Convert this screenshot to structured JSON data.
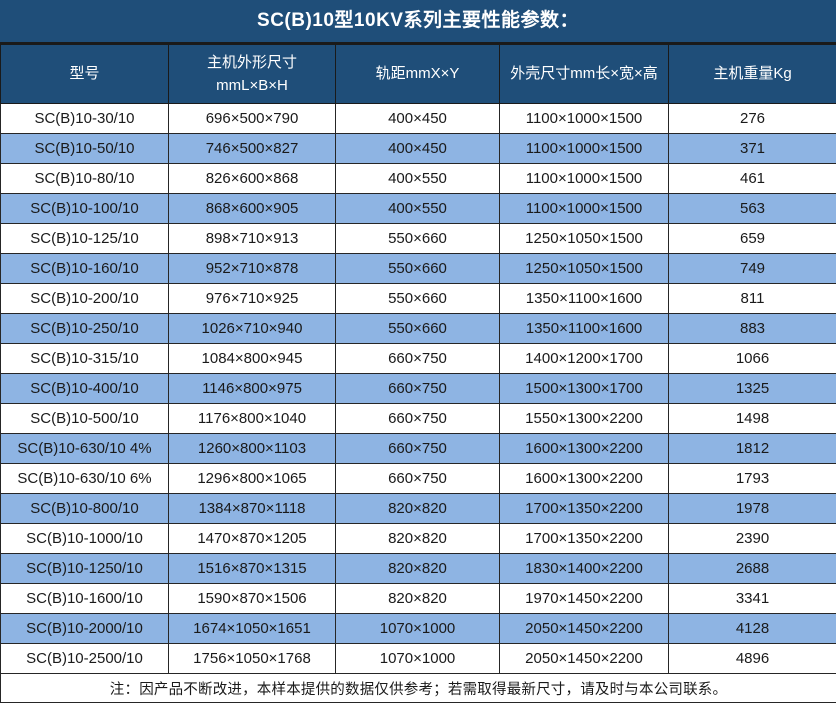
{
  "title": "SC(B)10型10KV系列主要性能参数：",
  "colors": {
    "header_dark_blue": "#1f4e79",
    "row_alt_light_blue": "#8eb4e3",
    "grid_border": "#262626",
    "header_text": "#ffffff",
    "body_text": "#1a1a1a"
  },
  "table": {
    "header": {
      "model": "型号",
      "host_dims_line1": "主机外形尺寸",
      "host_dims_line2": "mmL×B×H",
      "rail_gauge": "轨距mmX×Y",
      "shell_dims": "外壳尺寸mm长×宽×高",
      "weight": "主机重量Kg"
    },
    "rows": [
      [
        "SC(B)10-30/10",
        "696×500×790",
        "400×450",
        "1100×1000×1500",
        "276"
      ],
      [
        "SC(B)10-50/10",
        "746×500×827",
        "400×450",
        "1100×1000×1500",
        "371"
      ],
      [
        "SC(B)10-80/10",
        "826×600×868",
        "400×550",
        "1100×1000×1500",
        "461"
      ],
      [
        "SC(B)10-100/10",
        "868×600×905",
        "400×550",
        "1100×1000×1500",
        "563"
      ],
      [
        "SC(B)10-125/10",
        "898×710×913",
        "550×660",
        "1250×1050×1500",
        "659"
      ],
      [
        "SC(B)10-160/10",
        "952×710×878",
        "550×660",
        "1250×1050×1500",
        "749"
      ],
      [
        "SC(B)10-200/10",
        "976×710×925",
        "550×660",
        "1350×1100×1600",
        "811"
      ],
      [
        "SC(B)10-250/10",
        "1026×710×940",
        "550×660",
        "1350×1100×1600",
        "883"
      ],
      [
        "SC(B)10-315/10",
        "1084×800×945",
        "660×750",
        "1400×1200×1700",
        "1066"
      ],
      [
        "SC(B)10-400/10",
        "1146×800×975",
        "660×750",
        "1500×1300×1700",
        "1325"
      ],
      [
        "SC(B)10-500/10",
        "1176×800×1040",
        "660×750",
        "1550×1300×2200",
        "1498"
      ],
      [
        "SC(B)10-630/10 4%",
        "1260×800×1103",
        "660×750",
        "1600×1300×2200",
        "1812"
      ],
      [
        "SC(B)10-630/10 6%",
        "1296×800×1065",
        "660×750",
        "1600×1300×2200",
        "1793"
      ],
      [
        "SC(B)10-800/10",
        "1384×870×1118",
        "820×820",
        "1700×1350×2200",
        "1978"
      ],
      [
        "SC(B)10-1000/10",
        "1470×870×1205",
        "820×820",
        "1700×1350×2200",
        "2390"
      ],
      [
        "SC(B)10-1250/10",
        "1516×870×1315",
        "820×820",
        "1830×1400×2200",
        "2688"
      ],
      [
        "SC(B)10-1600/10",
        "1590×870×1506",
        "820×820",
        "1970×1450×2200",
        "3341"
      ],
      [
        "SC(B)10-2000/10",
        "1674×1050×1651",
        "1070×1000",
        "2050×1450×2200",
        "4128"
      ],
      [
        "SC(B)10-2500/10",
        "1756×1050×1768",
        "1070×1000",
        "2050×1450×2200",
        "4896"
      ]
    ],
    "note": "注：因产品不断改进，本样本提供的数据仅供参考；若需取得最新尺寸，请及时与本公司联系。"
  }
}
